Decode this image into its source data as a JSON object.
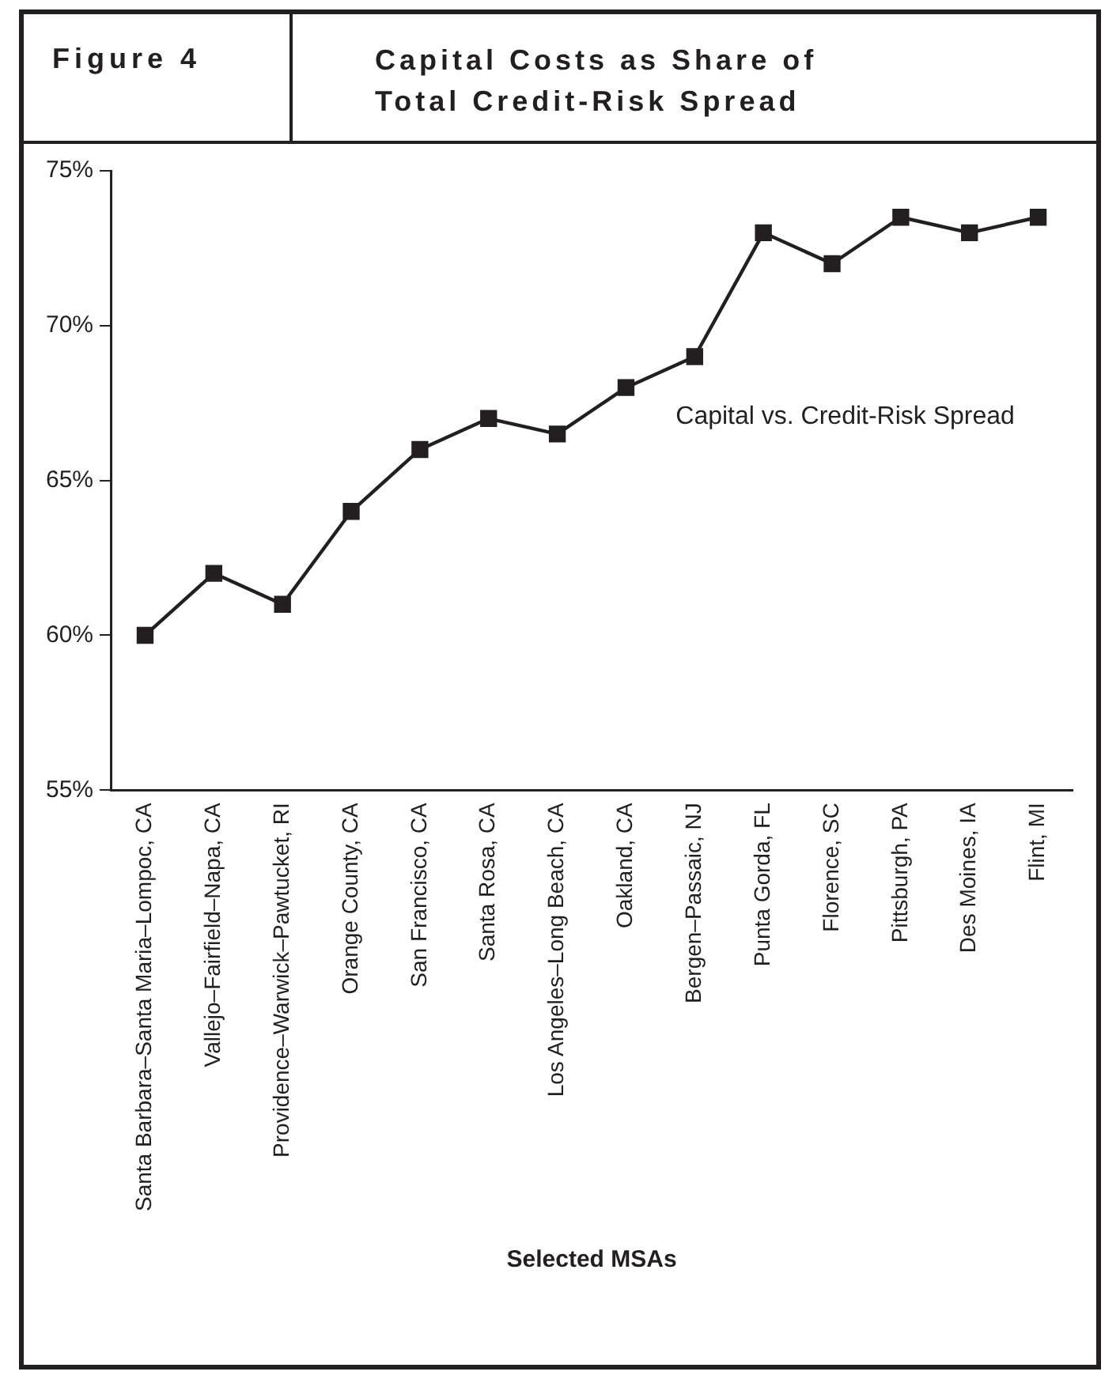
{
  "chart_data": {
    "type": "line",
    "title": "Capital Costs as Share of Total Credit-Risk Spread",
    "annotations": [
      "Figure 4"
    ],
    "xlabel": "Selected MSAs",
    "categories": [
      "Santa Barbara–Santa Maria–Lompoc, CA",
      "Vallejo–Fairfield–Napa, CA",
      "Providence–Warwick–Pawtucket, RI",
      "Orange County, CA",
      "San Francisco, CA",
      "Santa Rosa, CA",
      "Los Angeles–Long Beach, CA",
      "Oakland, CA",
      "Bergen–Passaic, NJ",
      "Punta Gorda, FL",
      "Florence, SC",
      "Pittsburgh, PA",
      "Des Moines, IA",
      "Flint, MI"
    ],
    "series": [
      {
        "name": "Capital vs. Credit-Risk Spread",
        "color": "#231f20",
        "values": [
          60,
          62,
          61,
          64,
          66,
          67,
          66.5,
          68,
          69,
          73,
          72,
          73.5,
          73,
          73.5
        ]
      }
    ],
    "ylim": [
      55,
      75
    ],
    "yticks": [
      {
        "value": 55,
        "label": "55%"
      },
      {
        "value": 60,
        "label": "60%"
      },
      {
        "value": 65,
        "label": "65%"
      },
      {
        "value": 70,
        "label": "70%"
      },
      {
        "value": 75,
        "label": "75%"
      }
    ],
    "grid": false,
    "legend": false,
    "marker": "square",
    "line_style": "solid"
  }
}
